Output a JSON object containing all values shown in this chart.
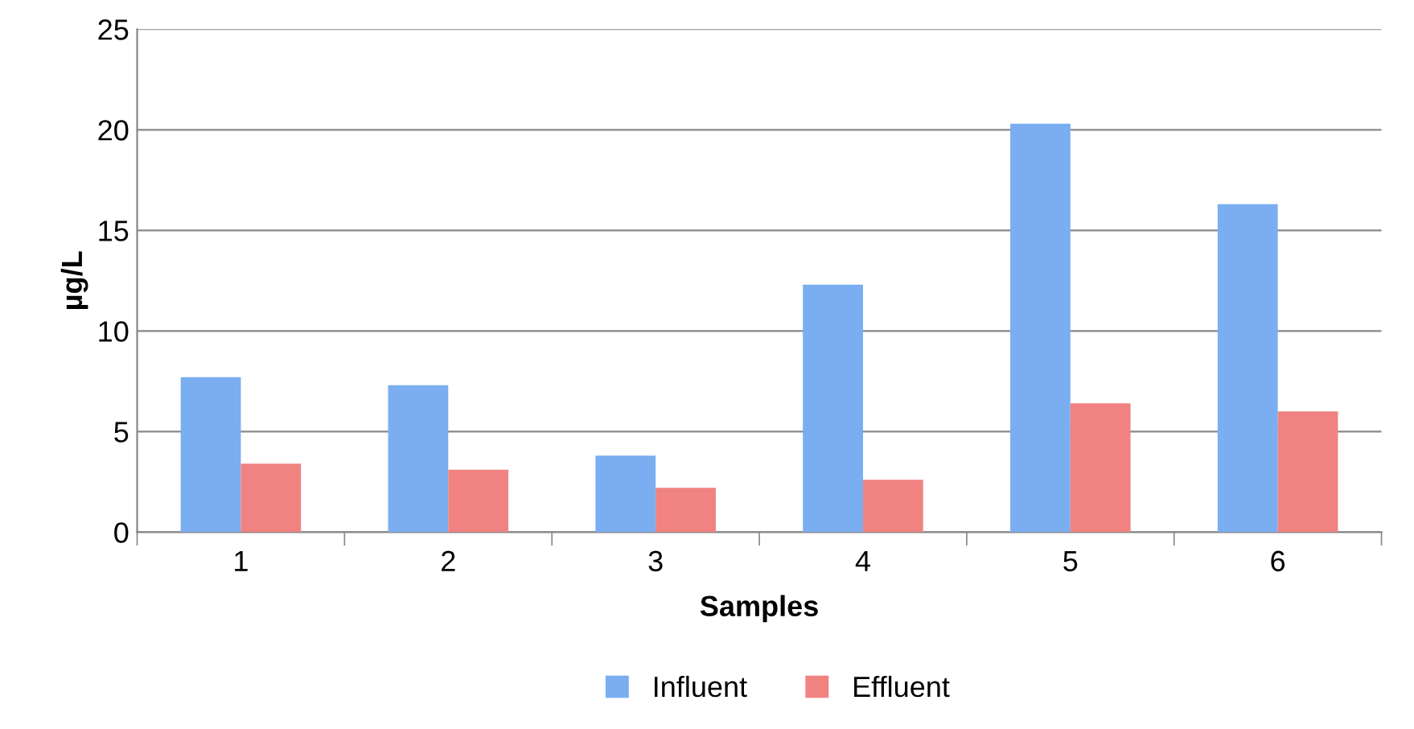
{
  "chart_data": {
    "type": "bar",
    "xlabel": "Samples",
    "ylabel": "µg/L",
    "categories": [
      "1",
      "2",
      "3",
      "4",
      "5",
      "6"
    ],
    "series": [
      {
        "name": "Influent",
        "color": "#7aaef0",
        "values": [
          7.7,
          7.3,
          3.8,
          12.3,
          20.3,
          16.3
        ]
      },
      {
        "name": "Effluent",
        "color": "#f08282",
        "values": [
          3.4,
          3.1,
          2.2,
          2.6,
          6.4,
          6.0
        ]
      }
    ],
    "ylim": [
      0,
      25
    ],
    "yticks": [
      0,
      5,
      10,
      15,
      20,
      25
    ],
    "grid": "y",
    "legend": "bottom"
  }
}
